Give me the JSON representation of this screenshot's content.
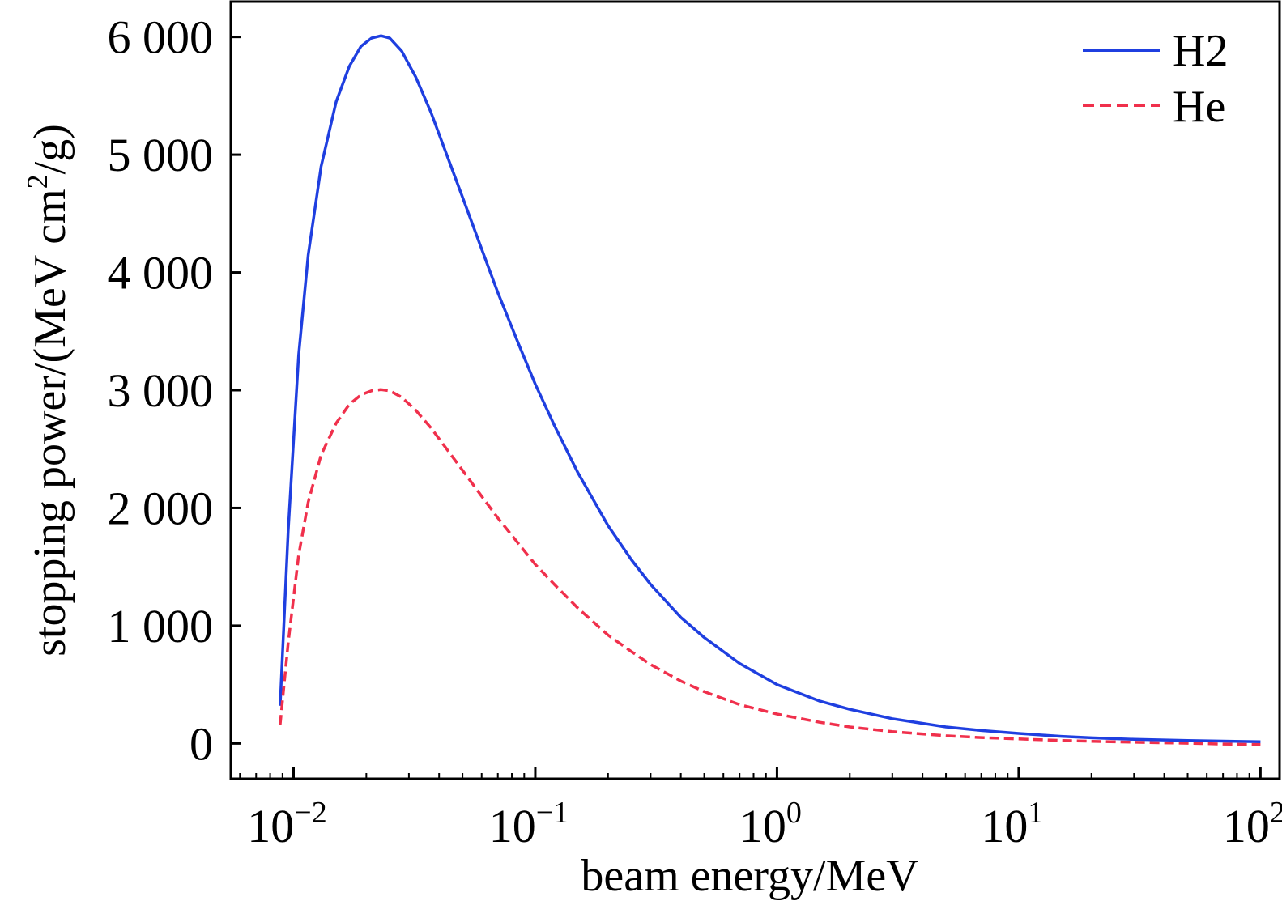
{
  "chart_data": {
    "type": "line",
    "title": "",
    "xlabel": "beam energy/MeV",
    "ylabel": {
      "prefix": "stopping power/(MeV cm",
      "sup": "2",
      "suffix": "/g)"
    },
    "x_scale": "log",
    "xlim": [
      0.0055,
      120
    ],
    "ylim": [
      -300,
      6300
    ],
    "x_ticks": [
      {
        "value": 0.01,
        "base": "10",
        "exp": "−2"
      },
      {
        "value": 0.1,
        "base": "10",
        "exp": "−1"
      },
      {
        "value": 1,
        "base": "10",
        "exp": "0"
      },
      {
        "value": 10,
        "base": "10",
        "exp": "1"
      },
      {
        "value": 100,
        "base": "10",
        "exp": "2"
      }
    ],
    "y_ticks": [
      {
        "value": 0,
        "label": "0"
      },
      {
        "value": 1000,
        "label": "1 000"
      },
      {
        "value": 2000,
        "label": "2 000"
      },
      {
        "value": 3000,
        "label": "3 000"
      },
      {
        "value": 4000,
        "label": "4 000"
      },
      {
        "value": 5000,
        "label": "5 000"
      },
      {
        "value": 6000,
        "label": "6 000"
      }
    ],
    "grid": false,
    "legend_position": "top-right",
    "series": [
      {
        "name": "H2",
        "color": "#1f3fe0",
        "style": "solid",
        "x": [
          0.0088,
          0.0095,
          0.0105,
          0.0115,
          0.013,
          0.015,
          0.017,
          0.019,
          0.021,
          0.023,
          0.025,
          0.028,
          0.032,
          0.037,
          0.043,
          0.05,
          0.06,
          0.07,
          0.085,
          0.1,
          0.12,
          0.15,
          0.2,
          0.25,
          0.3,
          0.4,
          0.5,
          0.7,
          1.0,
          1.5,
          2.0,
          3.0,
          5.0,
          7.0,
          10,
          15,
          20,
          30,
          50,
          70,
          100
        ],
        "y": [
          320,
          1800,
          3300,
          4150,
          4900,
          5450,
          5750,
          5920,
          5990,
          6010,
          5990,
          5880,
          5660,
          5360,
          5000,
          4640,
          4200,
          3830,
          3400,
          3050,
          2700,
          2300,
          1850,
          1560,
          1350,
          1070,
          900,
          680,
          500,
          360,
          290,
          210,
          140,
          110,
          85,
          60,
          48,
          35,
          25,
          20,
          15
        ]
      },
      {
        "name": "He",
        "color": "#f0304c",
        "style": "dashed",
        "x": [
          0.0088,
          0.0095,
          0.0105,
          0.0115,
          0.013,
          0.015,
          0.017,
          0.019,
          0.021,
          0.023,
          0.025,
          0.028,
          0.032,
          0.037,
          0.043,
          0.05,
          0.06,
          0.07,
          0.085,
          0.1,
          0.12,
          0.15,
          0.2,
          0.25,
          0.3,
          0.4,
          0.5,
          0.7,
          1.0,
          1.5,
          2.0,
          3.0,
          5.0,
          7.0,
          10,
          15,
          20,
          30,
          50,
          70,
          100
        ],
        "y": [
          160,
          850,
          1600,
          2050,
          2450,
          2720,
          2880,
          2960,
          2995,
          3005,
          2995,
          2940,
          2830,
          2680,
          2500,
          2320,
          2100,
          1915,
          1700,
          1520,
          1350,
          1150,
          920,
          780,
          670,
          530,
          440,
          330,
          250,
          180,
          140,
          100,
          65,
          50,
          38,
          25,
          18,
          10,
          2,
          -5,
          -10
        ]
      }
    ]
  }
}
